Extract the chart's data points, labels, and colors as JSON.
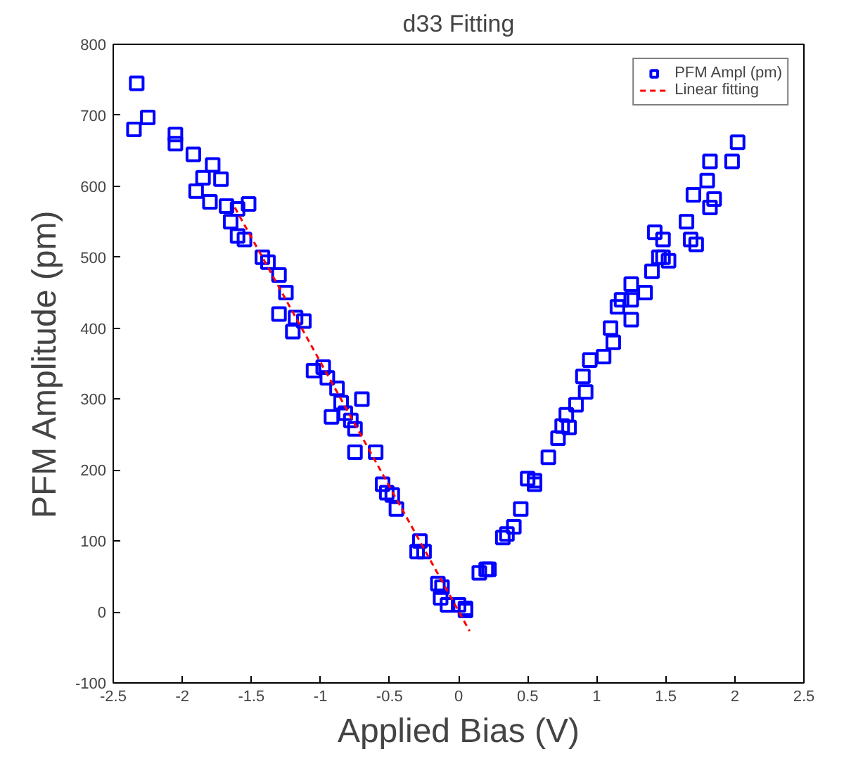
{
  "chart_data": {
    "type": "scatter",
    "title": "d33 Fitting",
    "xlabel": "Applied Bias (V)",
    "ylabel": "PFM Amplitude (pm)",
    "xlim": [
      -2.5,
      2.5
    ],
    "ylim": [
      -100,
      800
    ],
    "xticks": [
      -2.5,
      -2,
      -1.5,
      -1,
      -0.5,
      0,
      0.5,
      1,
      1.5,
      2,
      2.5
    ],
    "yticks": [
      -100,
      0,
      100,
      200,
      300,
      400,
      500,
      600,
      700,
      800
    ],
    "grid": false,
    "legend": "top right",
    "series": [
      {
        "name": "PFM Ampl (pm)",
        "marker": "square",
        "color": "#0000ff",
        "x": [
          -2.33,
          -2.35,
          -2.25,
          -2.05,
          -2.05,
          -1.92,
          -1.9,
          -1.85,
          -1.78,
          -1.8,
          -1.72,
          -1.68,
          -1.65,
          -1.6,
          -1.6,
          -1.55,
          -1.52,
          -1.42,
          -1.38,
          -1.3,
          -1.3,
          -1.25,
          -1.2,
          -1.18,
          -1.12,
          -1.05,
          -0.98,
          -0.95,
          -0.92,
          -0.88,
          -0.85,
          -0.82,
          -0.78,
          -0.75,
          -0.75,
          -0.7,
          -0.6,
          -0.55,
          -0.52,
          -0.48,
          -0.45,
          -0.3,
          -0.28,
          -0.25,
          -0.15,
          -0.12,
          -0.13,
          -0.08,
          0.0,
          0.05,
          0.05,
          0.15,
          0.2,
          0.22,
          0.32,
          0.35,
          0.4,
          0.45,
          0.5,
          0.55,
          0.55,
          0.65,
          0.72,
          0.75,
          0.78,
          0.8,
          0.85,
          0.9,
          0.92,
          0.95,
          1.05,
          1.1,
          1.12,
          1.15,
          1.18,
          1.25,
          1.25,
          1.25,
          1.35,
          1.4,
          1.42,
          1.45,
          1.48,
          1.48,
          1.52,
          1.65,
          1.68,
          1.7,
          1.72,
          1.8,
          1.82,
          1.82,
          1.85,
          1.98,
          2.02
        ],
        "values": [
          745,
          680,
          697,
          673,
          660,
          645,
          593,
          612,
          630,
          578,
          610,
          572,
          550,
          568,
          530,
          525,
          575,
          500,
          493,
          475,
          420,
          450,
          395,
          415,
          410,
          340,
          345,
          330,
          275,
          315,
          295,
          280,
          270,
          225,
          258,
          300,
          225,
          180,
          168,
          165,
          145,
          85,
          100,
          85,
          40,
          35,
          20,
          10,
          10,
          5,
          2,
          55,
          60,
          60,
          105,
          110,
          120,
          145,
          188,
          185,
          180,
          218,
          245,
          262,
          278,
          260,
          292,
          332,
          310,
          355,
          360,
          400,
          380,
          430,
          440,
          440,
          412,
          462,
          450,
          480,
          535,
          500,
          525,
          500,
          495,
          550,
          525,
          588,
          518,
          608,
          635,
          570,
          582,
          635,
          662
        ]
      },
      {
        "name": "Linear fitting",
        "type": "line",
        "line_style": "dashed",
        "color": "#ff0000",
        "x": [
          -1.62,
          0.08
        ],
        "values": [
          570,
          -27
        ]
      }
    ]
  }
}
